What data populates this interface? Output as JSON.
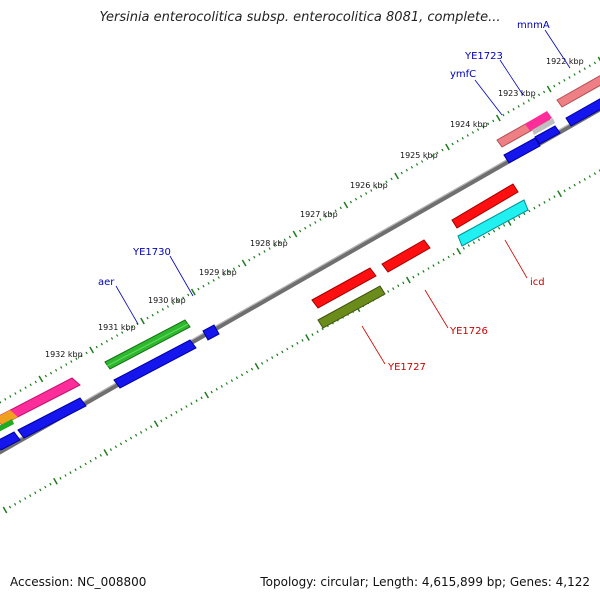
{
  "title": "Yersinia enterocolitica subsp. enterocolitica 8081, complete...",
  "footer": {
    "accession": "Accession: NC_008800",
    "summary": "Topology: circular; Length: 4,615,899 bp; Genes: 4,122"
  },
  "colors": {
    "backbone": "#7a7a7a",
    "ticks": "#1e7a1e",
    "forward_label": "#0000b8",
    "reverse_label": "#cc0000"
  },
  "kbp_labels": [
    "1922 kbp",
    "1923 kbp",
    "1924 kbp",
    "1925 kbp",
    "1926 kbp",
    "1927 kbp",
    "1928 kbp",
    "1929 kbp",
    "1930 kbp",
    "1931 kbp",
    "1932 kbp"
  ],
  "gene_labels_forward": [
    "mnmA",
    "YE1723",
    "ymfC",
    "YE1730",
    "aer"
  ],
  "gene_labels_reverse": [
    "icd",
    "YE1726",
    "YE1727"
  ]
}
